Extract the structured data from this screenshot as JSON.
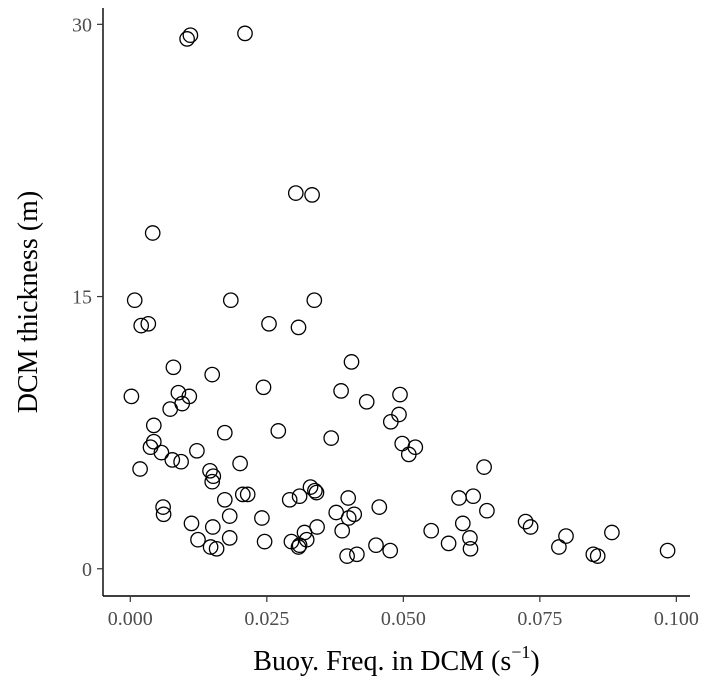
{
  "chart_data": {
    "type": "scatter",
    "xlabel": "Buoy. Freq. in DCM (s",
    "xlabel_sup": "−1",
    "xlabel_end": ")",
    "ylabel": "DCM thickness (m)",
    "xlim": [
      -0.005,
      0.1025
    ],
    "ylim": [
      -1.5,
      30.9
    ],
    "x_ticks": [
      0.0,
      0.025,
      0.05,
      0.075,
      0.1
    ],
    "x_tick_labels": [
      "0.000",
      "0.025",
      "0.050",
      "0.075",
      "0.100"
    ],
    "y_ticks": [
      0,
      15,
      30
    ],
    "y_tick_labels": [
      "0",
      "15",
      "30"
    ],
    "grid": false,
    "legend": "none",
    "marker": "open-circle",
    "marker_color": "#000000",
    "points": [
      [
        0.0104,
        29.2
      ],
      [
        0.011,
        29.4
      ],
      [
        0.021,
        29.5
      ],
      [
        0.0303,
        20.7
      ],
      [
        0.0333,
        20.6
      ],
      [
        0.0041,
        18.5
      ],
      [
        0.0008,
        14.8
      ],
      [
        0.002,
        13.4
      ],
      [
        0.0033,
        13.5
      ],
      [
        0.0184,
        14.8
      ],
      [
        0.0254,
        13.5
      ],
      [
        0.0308,
        13.3
      ],
      [
        0.0337,
        14.8
      ],
      [
        0.0079,
        11.1
      ],
      [
        0.015,
        10.7
      ],
      [
        0.0405,
        11.4
      ],
      [
        0.0002,
        9.5
      ],
      [
        0.0088,
        9.7
      ],
      [
        0.0108,
        9.5
      ],
      [
        0.0073,
        8.8
      ],
      [
        0.0095,
        9.1
      ],
      [
        0.0244,
        10.0
      ],
      [
        0.0386,
        9.8
      ],
      [
        0.0433,
        9.2
      ],
      [
        0.0494,
        9.6
      ],
      [
        0.0492,
        8.5
      ],
      [
        0.0043,
        7.9
      ],
      [
        0.0043,
        7.0
      ],
      [
        0.0037,
        6.7
      ],
      [
        0.0057,
        6.4
      ],
      [
        0.0077,
        6.0
      ],
      [
        0.0093,
        5.9
      ],
      [
        0.0122,
        6.5
      ],
      [
        0.0173,
        7.5
      ],
      [
        0.0271,
        7.6
      ],
      [
        0.0368,
        7.2
      ],
      [
        0.0477,
        8.1
      ],
      [
        0.0498,
        6.9
      ],
      [
        0.051,
        6.3
      ],
      [
        0.0522,
        6.7
      ],
      [
        0.0018,
        5.5
      ],
      [
        0.0146,
        5.4
      ],
      [
        0.0152,
        5.1
      ],
      [
        0.015,
        4.8
      ],
      [
        0.0201,
        5.8
      ],
      [
        0.0648,
        5.6
      ],
      [
        0.006,
        3.4
      ],
      [
        0.0061,
        3.0
      ],
      [
        0.0173,
        3.8
      ],
      [
        0.0206,
        4.1
      ],
      [
        0.0215,
        4.1
      ],
      [
        0.0292,
        3.8
      ],
      [
        0.031,
        4.0
      ],
      [
        0.033,
        4.5
      ],
      [
        0.0338,
        4.3
      ],
      [
        0.0341,
        4.2
      ],
      [
        0.0399,
        3.9
      ],
      [
        0.0377,
        3.1
      ],
      [
        0.0388,
        2.1
      ],
      [
        0.041,
        3.0
      ],
      [
        0.0456,
        3.4
      ],
      [
        0.0602,
        3.9
      ],
      [
        0.0628,
        4.0
      ],
      [
        0.0653,
        3.2
      ],
      [
        0.0112,
        2.5
      ],
      [
        0.0124,
        1.6
      ],
      [
        0.0151,
        2.3
      ],
      [
        0.0182,
        2.9
      ],
      [
        0.0182,
        1.7
      ],
      [
        0.0241,
        2.8
      ],
      [
        0.0246,
        1.5
      ],
      [
        0.0295,
        1.5
      ],
      [
        0.0308,
        1.2
      ],
      [
        0.031,
        1.3
      ],
      [
        0.0319,
        2.0
      ],
      [
        0.0323,
        1.6
      ],
      [
        0.0342,
        2.3
      ],
      [
        0.04,
        2.8
      ],
      [
        0.0397,
        0.7
      ],
      [
        0.0415,
        0.8
      ],
      [
        0.045,
        1.3
      ],
      [
        0.0476,
        1.0
      ],
      [
        0.0551,
        2.1
      ],
      [
        0.0583,
        1.4
      ],
      [
        0.0609,
        2.5
      ],
      [
        0.0622,
        1.7
      ],
      [
        0.0623,
        1.1
      ],
      [
        0.0724,
        2.6
      ],
      [
        0.0733,
        2.3
      ],
      [
        0.0785,
        1.2
      ],
      [
        0.0798,
        1.8
      ],
      [
        0.0848,
        0.8
      ],
      [
        0.0856,
        0.7
      ],
      [
        0.0882,
        2.0
      ],
      [
        0.0984,
        1.0
      ],
      [
        0.0147,
        1.2
      ],
      [
        0.0158,
        1.1
      ]
    ]
  }
}
